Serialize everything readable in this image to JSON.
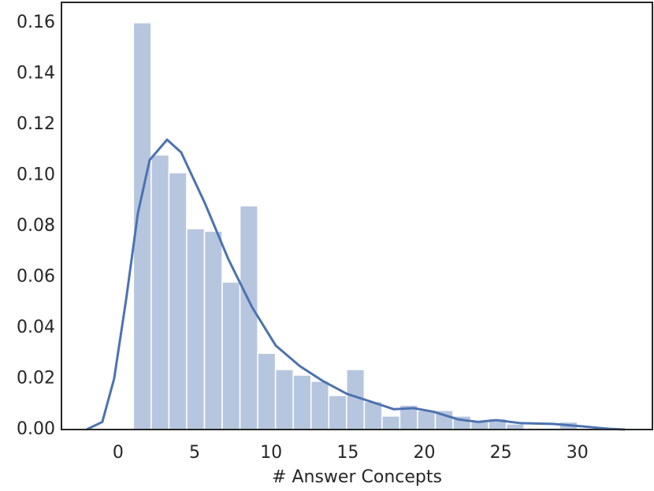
{
  "chart_data": {
    "type": "histogram",
    "xlabel": "# Answer Concepts",
    "bins": [
      1,
      2.16,
      3.32,
      4.48,
      5.64,
      6.8,
      7.96,
      9.12,
      10.28,
      11.44,
      12.6,
      13.76,
      14.92,
      16.08,
      17.24,
      18.4,
      19.56,
      20.72,
      21.88,
      23.04,
      24.2,
      25.36,
      26.52,
      27.68,
      28.84,
      30
    ],
    "values": [
      0.16,
      0.108,
      0.101,
      0.079,
      0.078,
      0.058,
      0.088,
      0.03,
      0.0236,
      0.0214,
      0.019,
      0.0134,
      0.0236,
      0.011,
      0.0053,
      0.0096,
      0.0075,
      0.0075,
      0.0053,
      0.003,
      0.0043,
      0.0022,
      0.0006,
      0.0006,
      0.003
    ],
    "color": "#b7c6df",
    "edgecolor": "#ffffff",
    "kde": {
      "color": "#4c72b0",
      "x": [
        -2.06,
        -1.03,
        -0.26,
        0.52,
        1.29,
        2.06,
        3.2,
        4.12,
        5.67,
        7.2,
        8.76,
        10.3,
        11.86,
        13.4,
        14.95,
        16.5,
        18.0,
        19.3,
        20.6,
        22.2,
        23.5,
        24.7,
        26.3,
        28.4,
        30.4,
        32,
        33.1
      ],
      "values": [
        0,
        0.003,
        0.02,
        0.051,
        0.085,
        0.106,
        0.114,
        0.109,
        0.089,
        0.067,
        0.048,
        0.033,
        0.025,
        0.019,
        0.014,
        0.011,
        0.008,
        0.0084,
        0.007,
        0.004,
        0.003,
        0.0037,
        0.0025,
        0.0022,
        0.0012,
        0.0003,
        0
      ]
    },
    "xlim": [
      -3.7,
      34.9
    ],
    "ylim": [
      0,
      0.168
    ],
    "xticks": [
      0,
      5,
      10,
      15,
      20,
      25,
      30
    ],
    "yticks": [
      {
        "value": 0,
        "label": "0.00"
      },
      {
        "value": 0.02,
        "label": "0.02"
      },
      {
        "value": 0.04,
        "label": "0.04"
      },
      {
        "value": 0.06,
        "label": "0.06"
      },
      {
        "value": 0.08,
        "label": "0.08"
      },
      {
        "value": 0.1,
        "label": "0.10"
      },
      {
        "value": 0.12,
        "label": "0.12"
      },
      {
        "value": 0.14,
        "label": "0.14"
      },
      {
        "value": 0.16,
        "label": "0.16"
      }
    ]
  }
}
